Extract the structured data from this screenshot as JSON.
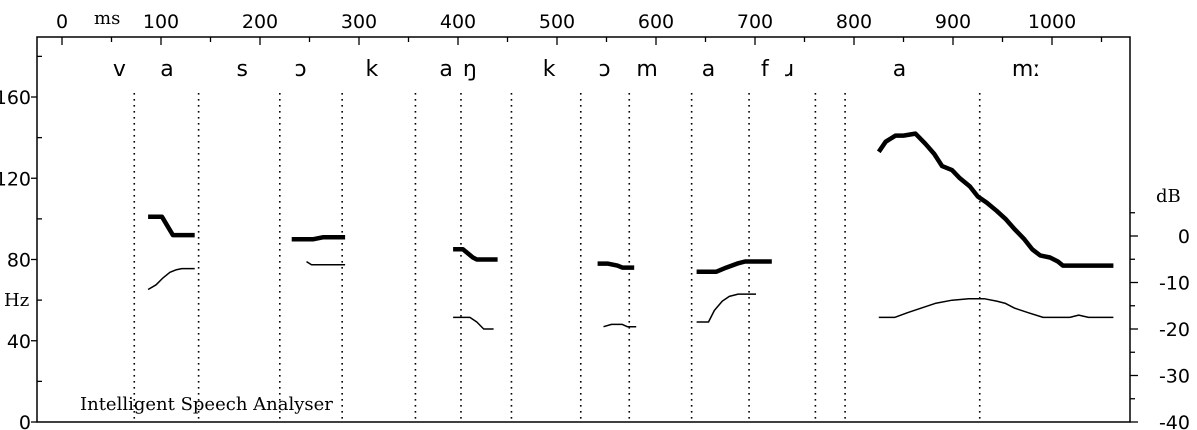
{
  "chart_data": {
    "type": "line",
    "title": "",
    "x_unit": "ms",
    "y_left_unit": "Hz",
    "y_right_unit": "dB",
    "xlim": [
      0,
      1090
    ],
    "ylim_left": [
      0,
      180
    ],
    "ylim_right": [
      -40,
      20
    ],
    "x_ticks": [
      0,
      100,
      200,
      300,
      400,
      500,
      600,
      700,
      800,
      900,
      1000
    ],
    "y_left_ticks": [
      0,
      40,
      80,
      120,
      160
    ],
    "y_right_ticks": [
      -40,
      -30,
      -20,
      -10,
      0
    ],
    "watermark": "Intelligent Speech Analyser",
    "grid": false,
    "segments": [
      {
        "label": "v",
        "x": 58
      },
      {
        "label": "a",
        "x": 106
      },
      {
        "label": "s",
        "x": 182
      },
      {
        "label": "ɔ",
        "x": 241
      },
      {
        "label": "k",
        "x": 313
      },
      {
        "label": "a",
        "x": 388
      },
      {
        "label": "ŋ",
        "x": 412
      },
      {
        "label": "k",
        "x": 492
      },
      {
        "label": "ɔ",
        "x": 548
      },
      {
        "label": "m",
        "x": 591
      },
      {
        "label": "a",
        "x": 653
      },
      {
        "label": "f",
        "x": 710
      },
      {
        "label": "ɹ",
        "x": 735
      },
      {
        "label": "a",
        "x": 846
      },
      {
        "label": "mː",
        "x": 974
      }
    ],
    "boundaries": [
      73,
      138,
      220,
      283,
      357,
      403,
      454,
      524,
      573,
      636,
      694,
      761,
      791,
      927
    ],
    "series": [
      {
        "role": "f0",
        "axis": "left",
        "segments": [
          [
            [
              87,
              101
            ],
            [
              101,
              101
            ],
            [
              112,
              92
            ],
            [
              134,
              92
            ]
          ],
          [
            [
              232,
              90
            ],
            [
              254,
              90
            ],
            [
              264,
              91
            ],
            [
              286,
              91
            ]
          ],
          [
            [
              395,
              85
            ],
            [
              405,
              85
            ],
            [
              415,
              81
            ],
            [
              419,
              80
            ],
            [
              440,
              80
            ]
          ],
          [
            [
              541,
              78
            ],
            [
              551,
              78
            ],
            [
              561,
              77
            ],
            [
              566,
              76
            ],
            [
              578,
              76
            ]
          ],
          [
            [
              641,
              74
            ],
            [
              661,
              74
            ],
            [
              671,
              76
            ],
            [
              682,
              78
            ],
            [
              690,
              79
            ],
            [
              702,
              79
            ],
            [
              717,
              79
            ]
          ],
          [
            [
              825,
              133
            ],
            [
              832,
              138
            ],
            [
              842,
              141
            ],
            [
              850,
              141
            ],
            [
              862,
              142
            ],
            [
              872,
              137
            ],
            [
              881,
              132
            ],
            [
              889,
              126
            ],
            [
              899,
              124
            ],
            [
              907,
              120
            ],
            [
              917,
              116
            ],
            [
              925,
              111
            ],
            [
              934,
              108
            ],
            [
              944,
              104
            ],
            [
              953,
              100
            ],
            [
              962,
              95
            ],
            [
              972,
              90
            ],
            [
              980,
              85
            ],
            [
              988,
              82
            ],
            [
              998,
              81
            ],
            [
              1006,
              79
            ],
            [
              1011,
              77
            ],
            [
              1020,
              77
            ],
            [
              1036,
              77
            ],
            [
              1062,
              77
            ]
          ]
        ]
      },
      {
        "role": "intensity",
        "axis": "right",
        "segments": [
          [
            [
              87,
              -11.5
            ],
            [
              95,
              -10.5
            ],
            [
              102,
              -9
            ],
            [
              109,
              -7.8
            ],
            [
              115,
              -7.3
            ],
            [
              121,
              -7
            ],
            [
              134,
              -7
            ]
          ],
          [
            [
              247,
              -5.5
            ],
            [
              252,
              -6.2
            ],
            [
              286,
              -6.2
            ]
          ],
          [
            [
              395,
              -17.5
            ],
            [
              412,
              -17.5
            ],
            [
              419,
              -18.5
            ],
            [
              426,
              -20
            ],
            [
              436,
              -20
            ]
          ],
          [
            [
              547,
              -19.5
            ],
            [
              555,
              -19
            ],
            [
              566,
              -19
            ],
            [
              571,
              -19.5
            ],
            [
              580,
              -19.5
            ]
          ],
          [
            [
              641,
              -18.5
            ],
            [
              653,
              -18.5
            ],
            [
              659,
              -16
            ],
            [
              667,
              -14
            ],
            [
              674,
              -13
            ],
            [
              683,
              -12.5
            ],
            [
              701,
              -12.5
            ]
          ],
          [
            [
              825,
              -17.5
            ],
            [
              841,
              -17.5
            ],
            [
              854,
              -16.5
            ],
            [
              868,
              -15.5
            ],
            [
              882,
              -14.5
            ],
            [
              899,
              -13.8
            ],
            [
              916,
              -13.5
            ],
            [
              932,
              -13.5
            ],
            [
              944,
              -14
            ],
            [
              953,
              -14.5
            ],
            [
              962,
              -15.5
            ],
            [
              976,
              -16.5
            ],
            [
              991,
              -17.5
            ],
            [
              1004,
              -17.5
            ],
            [
              1018,
              -17.5
            ],
            [
              1027,
              -17
            ],
            [
              1037,
              -17.5
            ],
            [
              1062,
              -17.5
            ]
          ]
        ]
      }
    ]
  }
}
